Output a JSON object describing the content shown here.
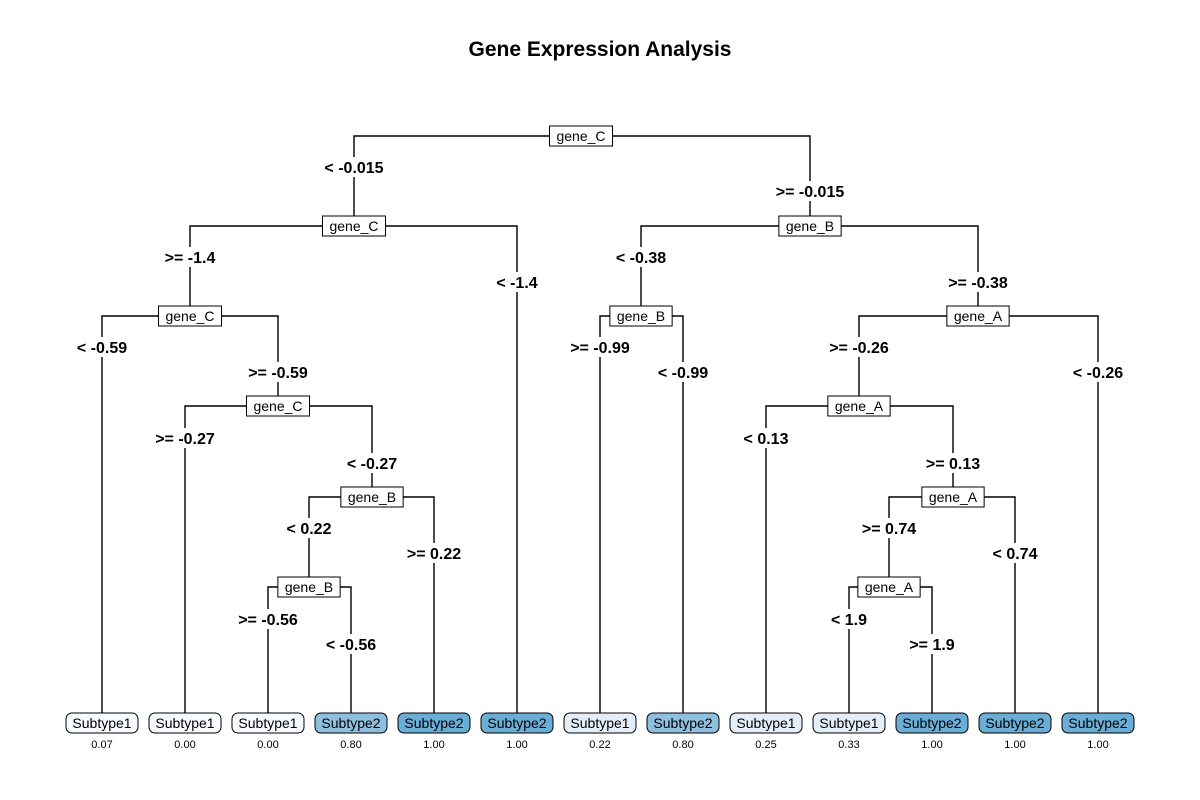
{
  "title": "Gene Expression Analysis",
  "colors": {
    "leaf_subtype1_low": "#f7fbff",
    "leaf_subtype1_mid": "#e3eef9",
    "leaf_subtype2_mid": "#8fbfdf",
    "leaf_subtype2_high": "#6aaed6",
    "line": "#000000"
  },
  "split_nodes": [
    {
      "id": "n1",
      "label": "gene_C"
    },
    {
      "id": "n2",
      "label": "gene_C"
    },
    {
      "id": "n3",
      "label": "gene_B"
    },
    {
      "id": "n4",
      "label": "gene_C"
    },
    {
      "id": "n5",
      "label": "gene_B"
    },
    {
      "id": "n6",
      "label": "gene_A"
    },
    {
      "id": "n7",
      "label": "gene_C"
    },
    {
      "id": "n8",
      "label": "gene_A"
    },
    {
      "id": "n9",
      "label": "gene_B"
    },
    {
      "id": "n10",
      "label": "gene_A"
    },
    {
      "id": "n11",
      "label": "gene_B"
    },
    {
      "id": "n12",
      "label": "gene_A"
    }
  ],
  "edges": [
    {
      "from": "n1",
      "to": "n2",
      "label": "< -0.015"
    },
    {
      "from": "n1",
      "to": "n3",
      "label": ">= -0.015"
    },
    {
      "from": "n2",
      "to": "n4",
      "label": ">= -1.4"
    },
    {
      "from": "n2",
      "to": "L6",
      "label": "< -1.4"
    },
    {
      "from": "n4",
      "to": "L1",
      "label": "< -0.59"
    },
    {
      "from": "n4",
      "to": "n7",
      "label": ">= -0.59"
    },
    {
      "from": "n7",
      "to": "L2",
      "label": ">= -0.27"
    },
    {
      "from": "n7",
      "to": "n9",
      "label": "< -0.27"
    },
    {
      "from": "n9",
      "to": "n11",
      "label": "< 0.22"
    },
    {
      "from": "n9",
      "to": "L5",
      "label": ">= 0.22"
    },
    {
      "from": "n11",
      "to": "L3",
      "label": ">= -0.56"
    },
    {
      "from": "n11",
      "to": "L4",
      "label": "< -0.56"
    },
    {
      "from": "n3",
      "to": "n5",
      "label": "< -0.38"
    },
    {
      "from": "n3",
      "to": "n6",
      "label": ">= -0.38"
    },
    {
      "from": "n5",
      "to": "L7",
      "label": ">= -0.99"
    },
    {
      "from": "n5",
      "to": "L8",
      "label": "< -0.99"
    },
    {
      "from": "n6",
      "to": "n8",
      "label": ">= -0.26"
    },
    {
      "from": "n6",
      "to": "L13",
      "label": "< -0.26"
    },
    {
      "from": "n8",
      "to": "L9",
      "label": "< 0.13"
    },
    {
      "from": "n8",
      "to": "n10",
      "label": ">= 0.13"
    },
    {
      "from": "n10",
      "to": "n12",
      "label": ">= 0.74"
    },
    {
      "from": "n10",
      "to": "L12",
      "label": "< 0.74"
    },
    {
      "from": "n12",
      "to": "L10",
      "label": "< 1.9"
    },
    {
      "from": "n12",
      "to": "L11",
      "label": ">= 1.9"
    }
  ],
  "leaves": [
    {
      "id": "L1",
      "label": "Subtype1",
      "prob": "0.07",
      "value": 0.07
    },
    {
      "id": "L2",
      "label": "Subtype1",
      "prob": "0.00",
      "value": 0.0
    },
    {
      "id": "L3",
      "label": "Subtype1",
      "prob": "0.00",
      "value": 0.0
    },
    {
      "id": "L4",
      "label": "Subtype2",
      "prob": "0.80",
      "value": 0.8
    },
    {
      "id": "L5",
      "label": "Subtype2",
      "prob": "1.00",
      "value": 1.0
    },
    {
      "id": "L6",
      "label": "Subtype2",
      "prob": "1.00",
      "value": 1.0
    },
    {
      "id": "L7",
      "label": "Subtype1",
      "prob": "0.22",
      "value": 0.22
    },
    {
      "id": "L8",
      "label": "Subtype2",
      "prob": "0.80",
      "value": 0.8
    },
    {
      "id": "L9",
      "label": "Subtype1",
      "prob": "0.25",
      "value": 0.25
    },
    {
      "id": "L10",
      "label": "Subtype1",
      "prob": "0.33",
      "value": 0.33
    },
    {
      "id": "L11",
      "label": "Subtype2",
      "prob": "1.00",
      "value": 1.0
    },
    {
      "id": "L12",
      "label": "Subtype2",
      "prob": "1.00",
      "value": 1.0
    },
    {
      "id": "L13",
      "label": "Subtype2",
      "prob": "1.00",
      "value": 1.0
    }
  ]
}
